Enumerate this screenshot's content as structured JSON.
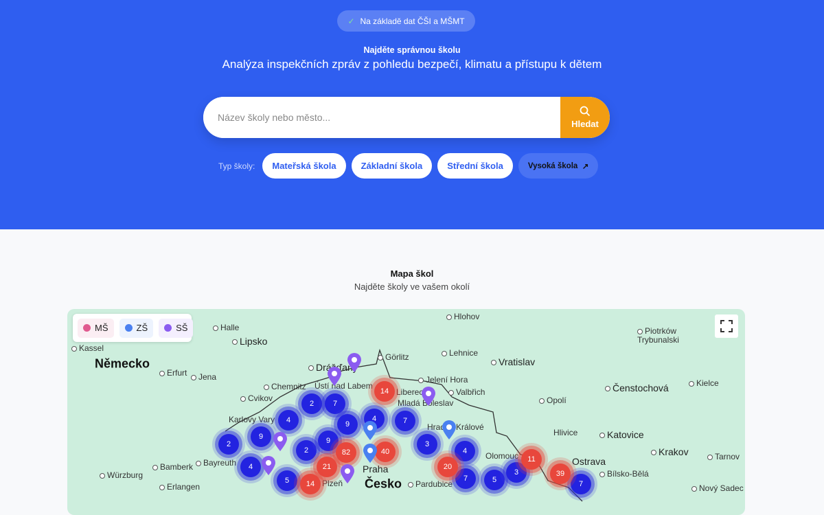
{
  "hero": {
    "badge": "Na základě dat ČŠI a MŠMT",
    "kicker": "Najděte správnou školu",
    "subtitle": "Analýza inspekčních zpráv z pohledu bezpečí, klimatu a přístupu k dětem",
    "search_placeholder": "Název školy nebo město...",
    "search_value": "",
    "search_button": "Hledat",
    "types_label": "Typ školy:",
    "types": [
      "Mateřská škola",
      "Základní škola",
      "Střední škola",
      "Vysoká škola"
    ]
  },
  "map_section": {
    "title": "Mapa škol",
    "subtitle": "Najděte školy ve vašem okolí",
    "legend": [
      {
        "label": "MŠ",
        "color": "#e05a8f"
      },
      {
        "label": "ZŠ",
        "color": "#4a80f0"
      },
      {
        "label": "SŠ",
        "color": "#8b5cf0"
      }
    ],
    "cities": [
      "Hlohov",
      "Halle",
      "Lipsko",
      "Kassel",
      "Německo",
      "Erfurt",
      "Jena",
      "Drážďany",
      "Görlitz",
      "Lehnice",
      "Vratislav",
      "Jelení Hora",
      "Valbřich",
      "Chemnitz",
      "Cvikov",
      "Ústí nad Labem",
      "Liberec",
      "Mladá Boleslav",
      "Karlovy Vary",
      "Praha",
      "Plzeň",
      "Česko",
      "Hradec Králové",
      "Pardubice",
      "Opolí",
      "Čenstochová",
      "Piotrków Trybunalski",
      "Kielce",
      "Hlivice",
      "Katovice",
      "Krakov",
      "Tarnov",
      "Bílsko-Bělá",
      "Ostrava",
      "Olomouc",
      "Nový Sadec",
      "Bamberk",
      "Bayreuth",
      "Würzburg",
      "Erlangen"
    ],
    "clusters_zs": [
      "2",
      "7",
      "4",
      "9",
      "4",
      "7",
      "9",
      "2",
      "2",
      "9",
      "4",
      "5",
      "3",
      "4",
      "7",
      "5",
      "3",
      "7"
    ],
    "clusters_ms": [
      "14",
      "82",
      "40",
      "21",
      "14",
      "20",
      "11",
      "39"
    ]
  }
}
